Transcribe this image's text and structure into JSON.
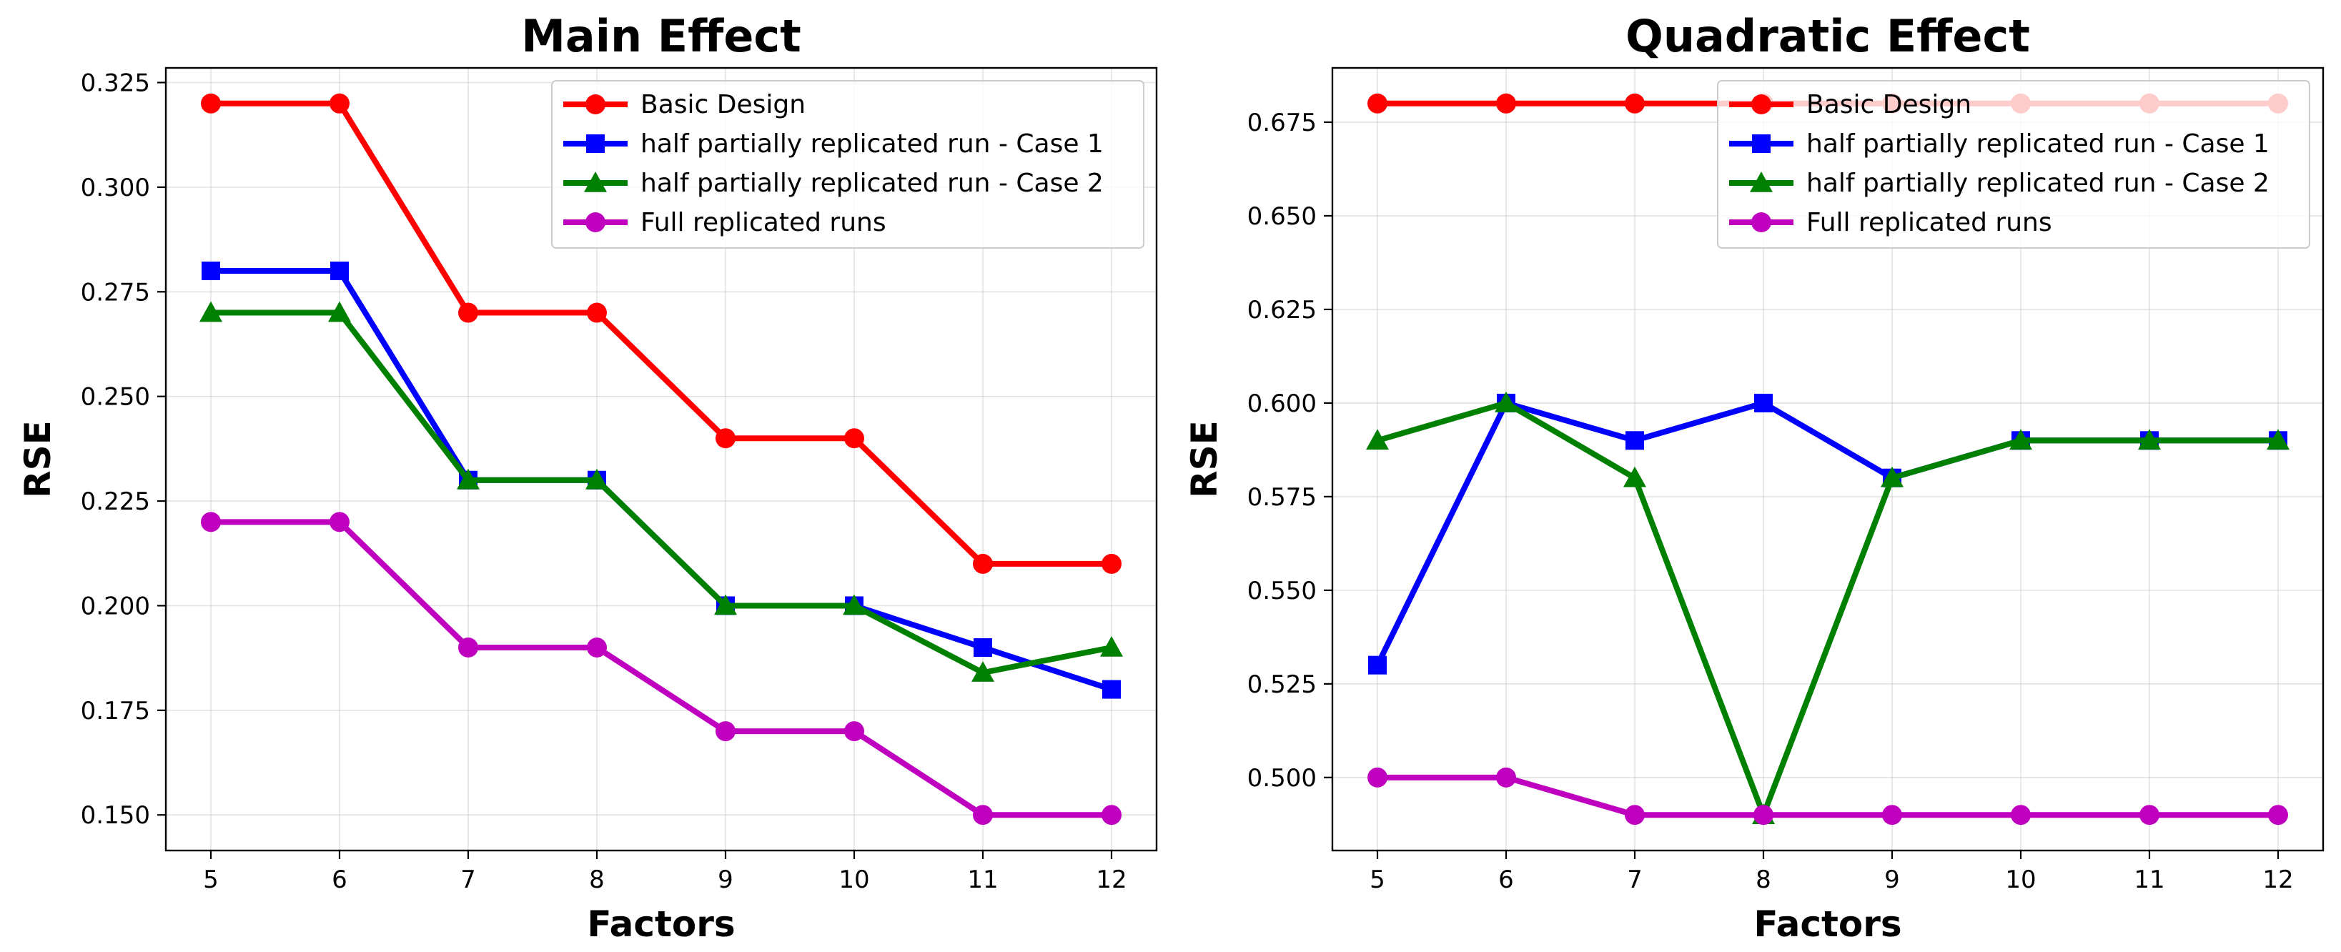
{
  "chart_data": [
    {
      "type": "line",
      "title": "Main Effect",
      "xlabel": "Factors",
      "ylabel": "RSE",
      "x": [
        5,
        6,
        7,
        8,
        9,
        10,
        11,
        12
      ],
      "xticks": [
        "5",
        "6",
        "7",
        "8",
        "9",
        "10",
        "11",
        "12"
      ],
      "yticks": [
        "0.150",
        "0.175",
        "0.200",
        "0.225",
        "0.250",
        "0.275",
        "0.300",
        "0.325"
      ],
      "ytick_values": [
        0.15,
        0.175,
        0.2,
        0.225,
        0.25,
        0.275,
        0.3,
        0.325
      ],
      "xlim": [
        4.65,
        12.35
      ],
      "ylim": [
        0.1415,
        0.3285
      ],
      "grid": true,
      "legend_position": "top-right",
      "series": [
        {
          "name": "Basic Design",
          "color": "#ff0000",
          "marker": "circle",
          "values": [
            0.32,
            0.32,
            0.27,
            0.27,
            0.24,
            0.24,
            0.21,
            0.21
          ]
        },
        {
          "name": "half partially replicated run - Case 1",
          "color": "#0000ff",
          "marker": "square",
          "values": [
            0.28,
            0.28,
            0.23,
            0.23,
            0.2,
            0.2,
            0.19,
            0.18
          ]
        },
        {
          "name": "half partially replicated run - Case 2",
          "color": "#008000",
          "marker": "triangle",
          "values": [
            0.27,
            0.27,
            0.23,
            0.23,
            0.2,
            0.2,
            0.184,
            0.19
          ]
        },
        {
          "name": "Full replicated runs",
          "color": "#bf00bf",
          "marker": "circle",
          "values": [
            0.22,
            0.22,
            0.19,
            0.19,
            0.17,
            0.17,
            0.15,
            0.15
          ]
        }
      ]
    },
    {
      "type": "line",
      "title": "Quadratic Effect",
      "xlabel": "Factors",
      "ylabel": "RSE",
      "x": [
        5,
        6,
        7,
        8,
        9,
        10,
        11,
        12
      ],
      "xticks": [
        "5",
        "6",
        "7",
        "8",
        "9",
        "10",
        "11",
        "12"
      ],
      "yticks": [
        "0.500",
        "0.525",
        "0.550",
        "0.575",
        "0.600",
        "0.625",
        "0.650",
        "0.675"
      ],
      "ytick_values": [
        0.5,
        0.525,
        0.55,
        0.575,
        0.6,
        0.625,
        0.65,
        0.675
      ],
      "xlim": [
        4.65,
        12.35
      ],
      "ylim": [
        0.4805,
        0.6895
      ],
      "grid": true,
      "legend_position": "top-right",
      "series": [
        {
          "name": "Basic Design",
          "color": "#ff0000",
          "marker": "circle",
          "values": [
            0.68,
            0.68,
            0.68,
            0.68,
            0.68,
            0.68,
            0.68,
            0.68
          ]
        },
        {
          "name": "half partially replicated run - Case 1",
          "color": "#0000ff",
          "marker": "square",
          "values": [
            0.53,
            0.6,
            0.59,
            0.6,
            0.58,
            0.59,
            0.59,
            0.59
          ]
        },
        {
          "name": "half partially replicated run - Case 2",
          "color": "#008000",
          "marker": "triangle",
          "values": [
            0.59,
            0.6,
            0.58,
            0.49,
            0.58,
            0.59,
            0.59,
            0.59
          ]
        },
        {
          "name": "Full replicated runs",
          "color": "#bf00bf",
          "marker": "circle",
          "values": [
            0.5,
            0.5,
            0.49,
            0.49,
            0.49,
            0.49,
            0.49,
            0.49
          ]
        }
      ]
    }
  ]
}
